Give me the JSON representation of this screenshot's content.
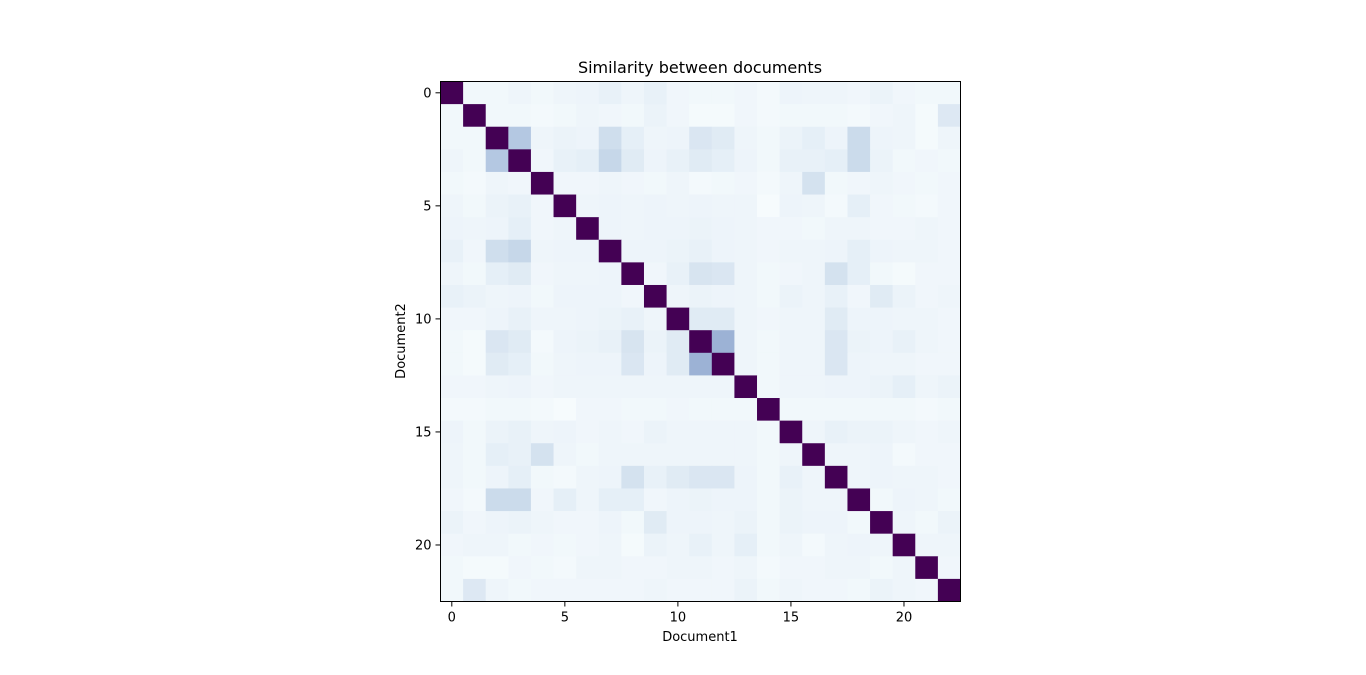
{
  "chart_data": {
    "type": "heatmap",
    "title": "Similarity between documents",
    "xlabel": "Document1",
    "ylabel": "Document2",
    "n": 23,
    "x_ticks": [
      0,
      5,
      10,
      15,
      20
    ],
    "y_ticks": [
      0,
      5,
      10,
      15,
      20
    ],
    "xlim": [
      -0.5,
      22.5
    ],
    "ylim": [
      22.5,
      -0.5
    ],
    "value_range": [
      0,
      1
    ],
    "colormap": "BuPu",
    "diagonal_color": "#440154",
    "values": [
      [
        1,
        0.04,
        0.04,
        0.06,
        0.04,
        0.06,
        0.07,
        0.09,
        0.06,
        0.09,
        0.05,
        0.04,
        0.04,
        0.05,
        0.03,
        0.07,
        0.06,
        0.06,
        0.05,
        0.08,
        0.05,
        0.04,
        0.04
      ],
      [
        0.04,
        1,
        0.04,
        0.04,
        0.03,
        0.04,
        0.06,
        0.05,
        0.04,
        0.08,
        0.05,
        0.02,
        0.02,
        0.05,
        0.03,
        0.04,
        0.04,
        0.04,
        0.03,
        0.05,
        0.06,
        0.02,
        0.13
      ],
      [
        0.04,
        0.04,
        1,
        0.3,
        0.06,
        0.08,
        0.07,
        0.18,
        0.1,
        0.06,
        0.07,
        0.14,
        0.12,
        0.06,
        0.04,
        0.08,
        0.1,
        0.07,
        0.2,
        0.07,
        0.06,
        0.02,
        0.06
      ],
      [
        0.06,
        0.04,
        0.3,
        1,
        0.05,
        0.09,
        0.1,
        0.22,
        0.12,
        0.07,
        0.09,
        0.12,
        0.1,
        0.07,
        0.04,
        0.09,
        0.09,
        0.1,
        0.2,
        0.08,
        0.04,
        0.05,
        0.04
      ],
      [
        0.04,
        0.03,
        0.06,
        0.05,
        1,
        0.05,
        0.05,
        0.06,
        0.05,
        0.04,
        0.06,
        0.03,
        0.04,
        0.05,
        0.03,
        0.06,
        0.16,
        0.04,
        0.05,
        0.06,
        0.05,
        0.04,
        0.05
      ],
      [
        0.06,
        0.04,
        0.08,
        0.09,
        0.05,
        1,
        0.06,
        0.07,
        0.06,
        0.07,
        0.06,
        0.07,
        0.06,
        0.06,
        0.01,
        0.07,
        0.06,
        0.03,
        0.1,
        0.05,
        0.04,
        0.03,
        0.05
      ],
      [
        0.07,
        0.06,
        0.07,
        0.1,
        0.05,
        0.06,
        1,
        0.07,
        0.06,
        0.07,
        0.07,
        0.08,
        0.07,
        0.06,
        0.05,
        0.05,
        0.04,
        0.06,
        0.06,
        0.05,
        0.05,
        0.06,
        0.05
      ],
      [
        0.09,
        0.05,
        0.18,
        0.22,
        0.06,
        0.07,
        0.07,
        1,
        0.07,
        0.07,
        0.08,
        0.09,
        0.07,
        0.06,
        0.05,
        0.06,
        0.06,
        0.07,
        0.1,
        0.07,
        0.06,
        0.06,
        0.05
      ],
      [
        0.06,
        0.04,
        0.1,
        0.12,
        0.05,
        0.06,
        0.06,
        0.07,
        1,
        0.05,
        0.09,
        0.15,
        0.14,
        0.06,
        0.04,
        0.05,
        0.06,
        0.16,
        0.1,
        0.04,
        0.02,
        0.05,
        0.05
      ],
      [
        0.09,
        0.08,
        0.06,
        0.07,
        0.04,
        0.07,
        0.07,
        0.07,
        0.05,
        1,
        0.06,
        0.08,
        0.07,
        0.06,
        0.04,
        0.08,
        0.06,
        0.09,
        0.05,
        0.12,
        0.08,
        0.05,
        0.06
      ],
      [
        0.05,
        0.05,
        0.07,
        0.09,
        0.06,
        0.06,
        0.07,
        0.08,
        0.09,
        0.06,
        1,
        0.12,
        0.12,
        0.06,
        0.05,
        0.06,
        0.06,
        0.12,
        0.07,
        0.07,
        0.06,
        0.06,
        0.05
      ],
      [
        0.04,
        0.02,
        0.14,
        0.12,
        0.03,
        0.07,
        0.08,
        0.09,
        0.15,
        0.08,
        0.12,
        1,
        0.42,
        0.06,
        0.04,
        0.06,
        0.06,
        0.14,
        0.08,
        0.07,
        0.09,
        0.06,
        0.05
      ],
      [
        0.04,
        0.02,
        0.12,
        0.1,
        0.04,
        0.06,
        0.07,
        0.07,
        0.14,
        0.07,
        0.12,
        0.42,
        1,
        0.06,
        0.04,
        0.06,
        0.06,
        0.14,
        0.07,
        0.06,
        0.06,
        0.05,
        0.05
      ],
      [
        0.05,
        0.05,
        0.06,
        0.07,
        0.05,
        0.06,
        0.06,
        0.06,
        0.06,
        0.06,
        0.06,
        0.06,
        0.06,
        1,
        0.04,
        0.06,
        0.06,
        0.07,
        0.07,
        0.08,
        0.1,
        0.06,
        0.08
      ],
      [
        0.03,
        0.03,
        0.04,
        0.04,
        0.03,
        0.01,
        0.05,
        0.05,
        0.04,
        0.04,
        0.05,
        0.04,
        0.04,
        0.04,
        1,
        0.04,
        0.04,
        0.04,
        0.04,
        0.04,
        0.04,
        0.03,
        0.04
      ],
      [
        0.07,
        0.04,
        0.08,
        0.09,
        0.06,
        0.07,
        0.05,
        0.06,
        0.05,
        0.08,
        0.06,
        0.06,
        0.06,
        0.06,
        0.04,
        1,
        0.06,
        0.09,
        0.08,
        0.08,
        0.06,
        0.05,
        0.06
      ],
      [
        0.06,
        0.04,
        0.1,
        0.09,
        0.16,
        0.06,
        0.04,
        0.06,
        0.06,
        0.06,
        0.06,
        0.06,
        0.06,
        0.06,
        0.04,
        0.06,
        1,
        0.06,
        0.06,
        0.07,
        0.03,
        0.05,
        0.05
      ],
      [
        0.06,
        0.04,
        0.07,
        0.1,
        0.04,
        0.03,
        0.06,
        0.07,
        0.16,
        0.09,
        0.12,
        0.14,
        0.14,
        0.07,
        0.04,
        0.09,
        0.06,
        1,
        0.06,
        0.07,
        0.06,
        0.06,
        0.05
      ],
      [
        0.05,
        0.03,
        0.2,
        0.2,
        0.05,
        0.1,
        0.06,
        0.1,
        0.1,
        0.05,
        0.07,
        0.08,
        0.07,
        0.07,
        0.04,
        0.08,
        0.06,
        0.06,
        1,
        0.04,
        0.07,
        0.06,
        0.04
      ],
      [
        0.08,
        0.05,
        0.07,
        0.08,
        0.06,
        0.05,
        0.05,
        0.07,
        0.04,
        0.12,
        0.07,
        0.07,
        0.06,
        0.08,
        0.04,
        0.08,
        0.07,
        0.07,
        0.04,
        1,
        0.06,
        0.04,
        0.08
      ],
      [
        0.05,
        0.06,
        0.06,
        0.04,
        0.05,
        0.04,
        0.05,
        0.06,
        0.02,
        0.08,
        0.06,
        0.09,
        0.06,
        0.1,
        0.04,
        0.06,
        0.03,
        0.06,
        0.07,
        0.06,
        1,
        0.06,
        0.06
      ],
      [
        0.04,
        0.02,
        0.02,
        0.05,
        0.04,
        0.03,
        0.06,
        0.06,
        0.05,
        0.05,
        0.06,
        0.06,
        0.05,
        0.06,
        0.03,
        0.05,
        0.05,
        0.06,
        0.06,
        0.04,
        0.06,
        1,
        0.05
      ],
      [
        0.04,
        0.13,
        0.06,
        0.04,
        0.05,
        0.05,
        0.05,
        0.05,
        0.05,
        0.06,
        0.05,
        0.05,
        0.05,
        0.08,
        0.04,
        0.06,
        0.05,
        0.05,
        0.04,
        0.08,
        0.06,
        0.05,
        1
      ]
    ]
  }
}
